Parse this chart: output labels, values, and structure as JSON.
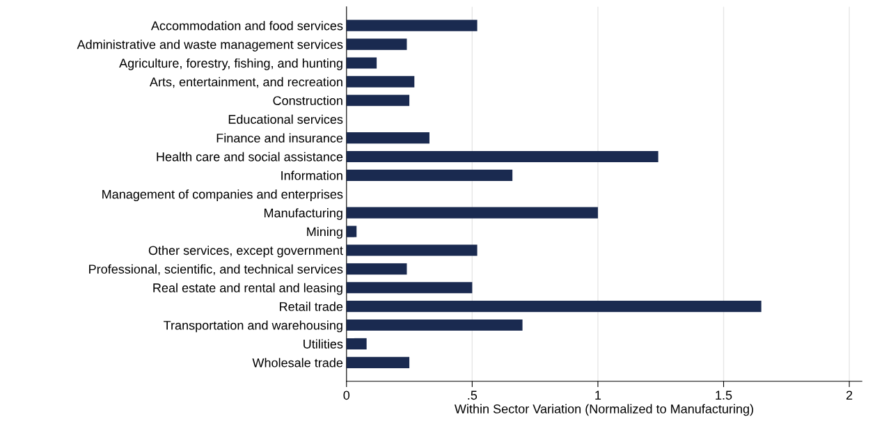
{
  "chart_data": {
    "type": "bar",
    "orientation": "horizontal",
    "xlabel": "Within Sector Variation (Normalized to Manufacturing)",
    "categories": [
      "Accommodation and food services",
      "Administrative and waste management services",
      "Agriculture, forestry, fishing, and hunting",
      "Arts, entertainment, and recreation",
      "Construction",
      "Educational services",
      "Finance and insurance",
      "Health care and social assistance",
      "Information",
      "Management of companies and enterprises",
      "Manufacturing",
      "Mining",
      "Other services, except government",
      "Professional, scientific, and technical services",
      "Real estate and rental and leasing",
      "Retail trade",
      "Transportation and warehousing",
      "Utilities",
      "Wholesale trade"
    ],
    "values": [
      0.52,
      0.24,
      0.12,
      0.27,
      0.25,
      null,
      0.33,
      1.24,
      0.66,
      null,
      1.0,
      0.04,
      0.52,
      0.24,
      0.5,
      1.65,
      0.7,
      0.08,
      0.25
    ],
    "color": "#1a2a50",
    "xlim": [
      0,
      2.05
    ],
    "xticks": [
      0,
      {
        "value": 0.5,
        "label": ".5"
      },
      1,
      1.5,
      2
    ],
    "grid": "x",
    "legend": false
  }
}
